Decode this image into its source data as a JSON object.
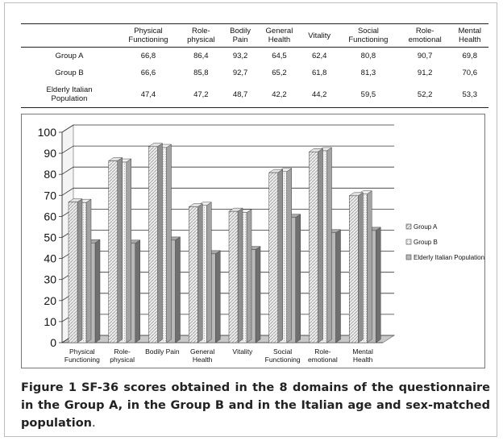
{
  "table": {
    "headers": [
      "",
      "Physical\nFunctioning",
      "Role-\nphysical",
      "Bodily\nPain",
      "General\nHealth",
      "Vitality",
      "Social\nFunctioning",
      "Role-\nemotional",
      "Mental\nHealth"
    ],
    "rows": [
      {
        "label": "Group A",
        "values": [
          "66,8",
          "86,4",
          "93,2",
          "64,5",
          "62,4",
          "80,8",
          "90,7",
          "69,8"
        ]
      },
      {
        "label": "Group B",
        "values": [
          "66,6",
          "85,8",
          "92,7",
          "65,2",
          "61,8",
          "81,3",
          "91,2",
          "70,6"
        ]
      },
      {
        "label": "Elderly Italian\nPopulation",
        "values": [
          "47,4",
          "47,2",
          "48,7",
          "42,2",
          "44,2",
          "59,5",
          "52,2",
          "53,3"
        ]
      }
    ]
  },
  "chart_data": {
    "type": "bar",
    "categories": [
      "Physical\nFunctioning",
      "Role-\nphysical",
      "Bodily Pain",
      "General\nHealth",
      "Vitality",
      "Social\nFunctioning",
      "Role-\nemotional",
      "Mental\nHealth"
    ],
    "series": [
      {
        "name": "Group A",
        "values": [
          66.8,
          86.4,
          93.2,
          64.5,
          62.4,
          80.8,
          90.7,
          69.8
        ],
        "color": "#d8d8d8"
      },
      {
        "name": "Group B",
        "values": [
          66.6,
          85.8,
          92.7,
          65.2,
          61.8,
          81.3,
          91.2,
          70.6
        ],
        "color": "#e6e6e6"
      },
      {
        "name": "Elderly Italian Population",
        "values": [
          47.4,
          47.2,
          48.7,
          42.2,
          44.2,
          59.5,
          52.2,
          53.3
        ],
        "color": "#a8a8a8"
      }
    ],
    "yticks": [
      "0",
      "10",
      "20",
      "30",
      "40",
      "50",
      "60",
      "70",
      "80",
      "90",
      "100"
    ],
    "ylim": [
      0,
      100
    ],
    "grid": true,
    "legend_position": "right",
    "bar_style": "3d"
  },
  "caption": {
    "label": "Figure 1",
    "text": "SF-36 scores obtained in the 8 domains of the questionnaire in the Group A, in the Group B and in the Italian age and sex-matched population",
    "end": "."
  }
}
